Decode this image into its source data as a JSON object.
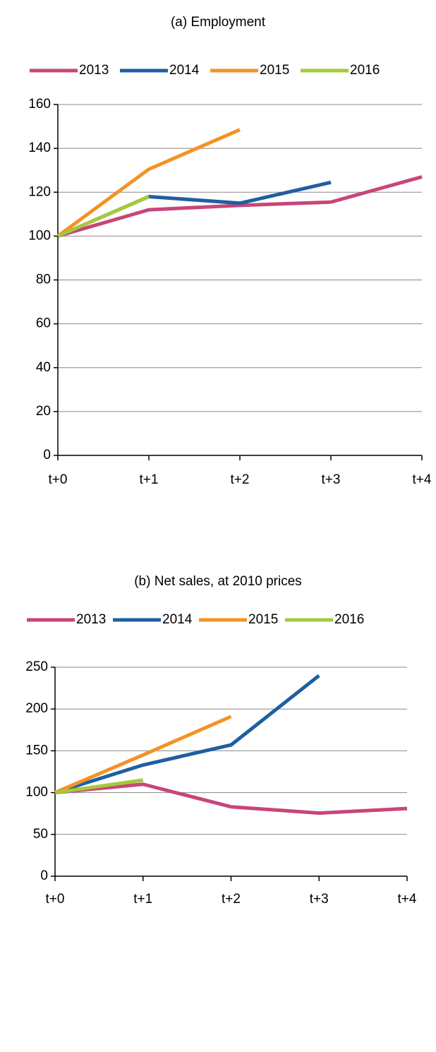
{
  "chart_data": [
    {
      "type": "line",
      "title": "(a) Employment",
      "categories": [
        "t+0",
        "t+1",
        "t+2",
        "t+3",
        "t+4"
      ],
      "series": [
        {
          "name": "2013",
          "color": "#c8457a",
          "values": [
            100,
            112,
            114,
            115.5,
            127
          ]
        },
        {
          "name": "2014",
          "color": "#1f5fa0",
          "values": [
            100,
            118,
            115,
            124.5,
            null
          ]
        },
        {
          "name": "2015",
          "color": "#f39325",
          "values": [
            100,
            130.5,
            148.5,
            null,
            null
          ]
        },
        {
          "name": "2016",
          "color": "#a6c93a",
          "values": [
            100,
            118,
            null,
            null,
            null
          ]
        }
      ],
      "ylim": [
        0,
        160
      ],
      "yticks": [
        0,
        20,
        40,
        60,
        80,
        100,
        120,
        140,
        160
      ],
      "grid": true,
      "legend": "top"
    },
    {
      "type": "line",
      "title": "(b) Net sales, at 2010 prices",
      "categories": [
        "t+0",
        "t+1",
        "t+2",
        "t+3",
        "t+4"
      ],
      "series": [
        {
          "name": "2013",
          "color": "#c8457a",
          "values": [
            100,
            110,
            83,
            75.5,
            81
          ]
        },
        {
          "name": "2014",
          "color": "#1f5fa0",
          "values": [
            100,
            133,
            157,
            240,
            null
          ]
        },
        {
          "name": "2015",
          "color": "#f39325",
          "values": [
            100,
            145,
            191,
            null,
            null
          ]
        },
        {
          "name": "2016",
          "color": "#a6c93a",
          "values": [
            100,
            115,
            null,
            null,
            null
          ]
        }
      ],
      "ylim": [
        0,
        250
      ],
      "yticks": [
        0,
        50,
        100,
        150,
        200,
        250
      ],
      "grid": true,
      "legend": "top"
    }
  ]
}
